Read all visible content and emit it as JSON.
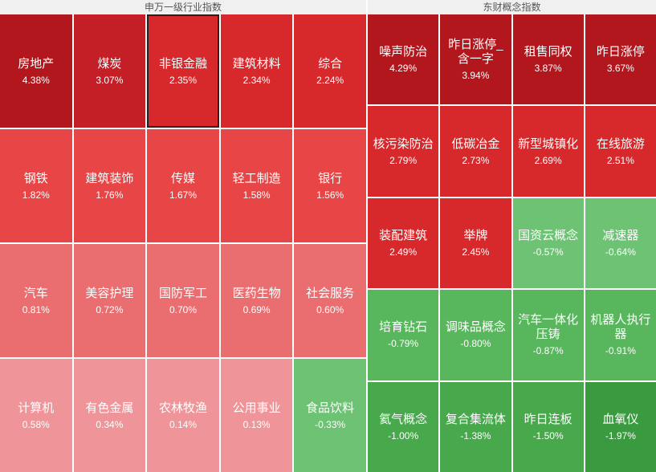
{
  "panels": [
    {
      "title": "申万一级行业指数",
      "columns": 5,
      "tiles": [
        {
          "name": "房地产",
          "change": "4.38%"
        },
        {
          "name": "煤炭",
          "change": "3.07%"
        },
        {
          "name": "非银金融",
          "change": "2.35%",
          "selected": true
        },
        {
          "name": "建筑材料",
          "change": "2.34%"
        },
        {
          "name": "综合",
          "change": "2.24%"
        },
        {
          "name": "钢铁",
          "change": "1.82%"
        },
        {
          "name": "建筑装饰",
          "change": "1.76%"
        },
        {
          "name": "传媒",
          "change": "1.67%"
        },
        {
          "name": "轻工制造",
          "change": "1.58%"
        },
        {
          "name": "银行",
          "change": "1.56%"
        },
        {
          "name": "汽车",
          "change": "0.81%"
        },
        {
          "name": "美容护理",
          "change": "0.72%"
        },
        {
          "name": "国防军工",
          "change": "0.70%"
        },
        {
          "name": "医药生物",
          "change": "0.69%"
        },
        {
          "name": "社会服务",
          "change": "0.60%"
        },
        {
          "name": "计算机",
          "change": "0.58%"
        },
        {
          "name": "有色金属",
          "change": "0.34%"
        },
        {
          "name": "农林牧渔",
          "change": "0.14%"
        },
        {
          "name": "公用事业",
          "change": "0.13%"
        },
        {
          "name": "食品饮料",
          "change": "-0.33%"
        }
      ]
    },
    {
      "title": "东财概念指数",
      "columns": 4,
      "tiles": [
        {
          "name": "噪声防治",
          "change": "4.29%"
        },
        {
          "name": "昨日涨停_含一字",
          "change": "3.94%"
        },
        {
          "name": "租售同权",
          "change": "3.87%"
        },
        {
          "name": "昨日涨停",
          "change": "3.67%"
        },
        {
          "name": "核污染防治",
          "change": "2.79%"
        },
        {
          "name": "低碳冶金",
          "change": "2.73%"
        },
        {
          "name": "新型城镇化",
          "change": "2.69%"
        },
        {
          "name": "在线旅游",
          "change": "2.51%"
        },
        {
          "name": "装配建筑",
          "change": "2.49%"
        },
        {
          "name": "举牌",
          "change": "2.45%"
        },
        {
          "name": "国资云概念",
          "change": "-0.57%"
        },
        {
          "name": "减速器",
          "change": "-0.64%"
        },
        {
          "name": "培育钻石",
          "change": "-0.79%"
        },
        {
          "name": "调味品概念",
          "change": "-0.80%"
        },
        {
          "name": "汽车一体化压铸",
          "change": "-0.87%"
        },
        {
          "name": "机器人执行器",
          "change": "-0.91%"
        },
        {
          "name": "氦气概念",
          "change": "-1.00%"
        },
        {
          "name": "复合集流体",
          "change": "-1.38%"
        },
        {
          "name": "昨日连板",
          "change": "-1.50%"
        },
        {
          "name": "血氧仪",
          "change": "-1.97%"
        }
      ]
    }
  ]
}
